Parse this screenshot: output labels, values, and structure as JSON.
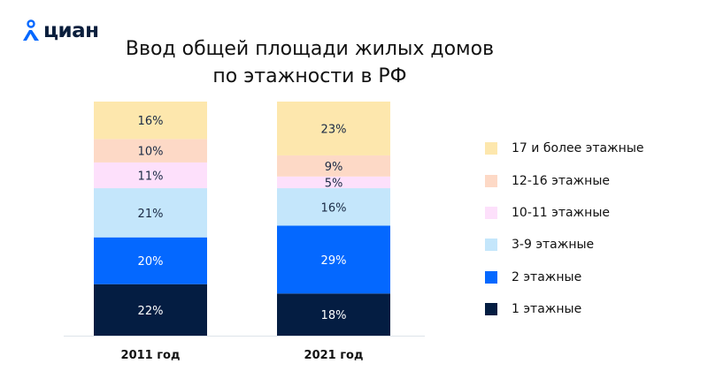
{
  "logo": {
    "text": "циан",
    "color": "#0468ff"
  },
  "chart_data": {
    "type": "stacked-bar",
    "title": "Ввод общей площади жилых домов по этажности в РФ",
    "title_lines": [
      "Ввод общей площади жилых домов",
      "по этажности в РФ"
    ],
    "categories": [
      "2011 год",
      "2021 год"
    ],
    "unit": "%",
    "ylim": [
      0,
      100
    ],
    "grid": false,
    "legend_position": "right",
    "series": [
      {
        "name": "1 этажные",
        "color": "#041d42",
        "label_color": "#ffffff",
        "values": [
          22,
          18
        ]
      },
      {
        "name": "2 этажные",
        "color": "#0468ff",
        "label_color": "#ffffff",
        "values": [
          20,
          29
        ]
      },
      {
        "name": "3-9 этажные",
        "color": "#c4e6fb",
        "label_color": "#1a2a44",
        "values": [
          21,
          16
        ]
      },
      {
        "name": "10-11 этажные",
        "color": "#fde0fb",
        "label_color": "#1a2a44",
        "values": [
          11,
          5
        ]
      },
      {
        "name": "12-16 этажные",
        "color": "#fdd9c6",
        "label_color": "#1a2a44",
        "values": [
          10,
          9
        ]
      },
      {
        "name": "17 и более этажные",
        "color": "#fde7ad",
        "label_color": "#1a2a44",
        "values": [
          16,
          23
        ]
      }
    ]
  }
}
